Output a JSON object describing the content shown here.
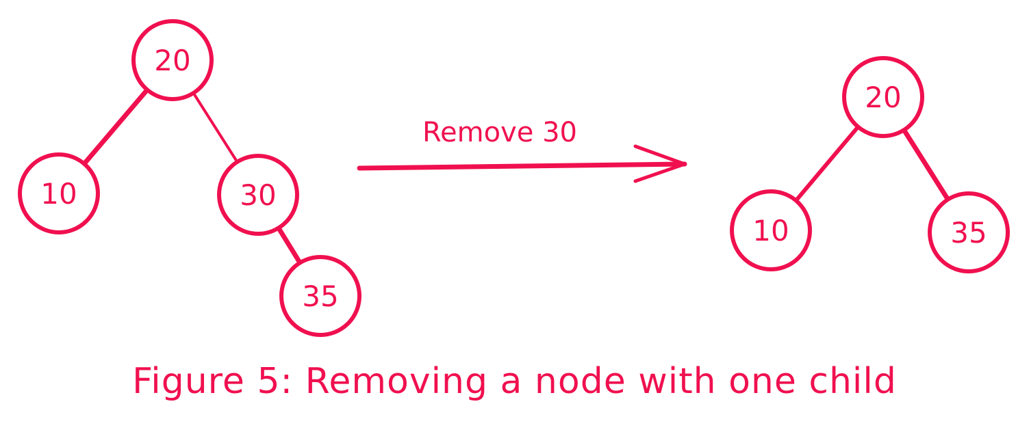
{
  "colors": {
    "ink": "#f0104f",
    "background": "#ffffff"
  },
  "before_tree": {
    "nodes": [
      {
        "id": "b20",
        "label": "20"
      },
      {
        "id": "b10",
        "label": "10"
      },
      {
        "id": "b30",
        "label": "30"
      },
      {
        "id": "b35",
        "label": "35"
      }
    ],
    "edges": [
      [
        "b20",
        "b10"
      ],
      [
        "b20",
        "b30"
      ],
      [
        "b30",
        "b35"
      ]
    ]
  },
  "operation": {
    "label": "Remove 30"
  },
  "after_tree": {
    "nodes": [
      {
        "id": "a20",
        "label": "20"
      },
      {
        "id": "a10",
        "label": "10"
      },
      {
        "id": "a35",
        "label": "35"
      }
    ],
    "edges": [
      [
        "a20",
        "a10"
      ],
      [
        "a20",
        "a35"
      ]
    ]
  },
  "caption": "Figure 5: Removing a node with one child"
}
